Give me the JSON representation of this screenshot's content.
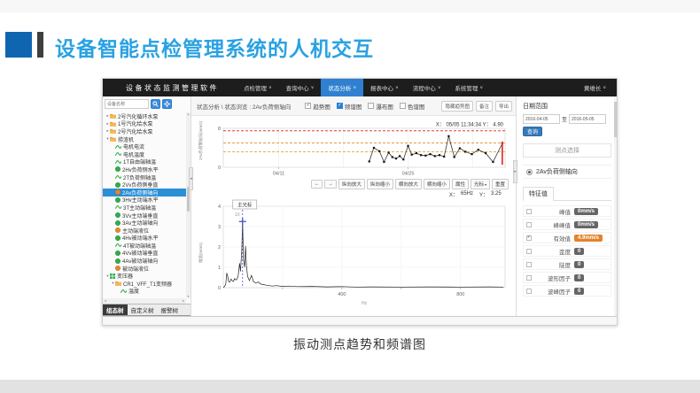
{
  "slide": {
    "title": "设备智能点检管理系统的人机交互",
    "caption": "振动测点趋势和频谱图"
  },
  "app": {
    "topbar": {
      "title": "设备状态监测管理软件",
      "menus": [
        {
          "label": "点检管理",
          "active": false
        },
        {
          "label": "查询中心",
          "active": false
        },
        {
          "label": "状态分析",
          "active": true
        },
        {
          "label": "报表中心",
          "active": false
        },
        {
          "label": "流程中心",
          "active": false
        },
        {
          "label": "系统管理",
          "active": false
        }
      ],
      "user": "黄维长"
    },
    "tree_panel": {
      "search_placeholder": "设备名称",
      "items": [
        {
          "label": "2号汽化循环水泵",
          "depth": 0,
          "icon": "folder",
          "arrow": "closed",
          "selected": false
        },
        {
          "label": "1号汽化给水泵",
          "depth": 0,
          "icon": "folder",
          "arrow": "closed",
          "selected": false
        },
        {
          "label": "2号汽化给水泵",
          "depth": 0,
          "icon": "folder",
          "arrow": "closed",
          "selected": false
        },
        {
          "label": "捞渣机",
          "depth": 0,
          "icon": "folder",
          "arrow": "open",
          "selected": false
        },
        {
          "label": "电机电流",
          "depth": 1,
          "icon": "wave",
          "arrow": null,
          "selected": false
        },
        {
          "label": "电机温度",
          "depth": 1,
          "icon": "wave",
          "arrow": null,
          "selected": false
        },
        {
          "label": "1T自由端轴温",
          "depth": 1,
          "icon": "wave",
          "arrow": null,
          "selected": false
        },
        {
          "label": "2Hv负荷侧水平",
          "depth": 1,
          "icon": "dot-green",
          "arrow": null,
          "selected": false
        },
        {
          "label": "2T负荷侧轴温",
          "depth": 1,
          "icon": "wave",
          "arrow": null,
          "selected": false
        },
        {
          "label": "2Vv负荷侧垂直",
          "depth": 1,
          "icon": "dot-green",
          "arrow": null,
          "selected": false
        },
        {
          "label": "2Av负荷侧轴向",
          "depth": 1,
          "icon": "dot-orange",
          "arrow": null,
          "selected": true
        },
        {
          "label": "3Hv主动端水平",
          "depth": 1,
          "icon": "dot-green",
          "arrow": null,
          "selected": false
        },
        {
          "label": "3T主动端轴温",
          "depth": 1,
          "icon": "wave",
          "arrow": null,
          "selected": false
        },
        {
          "label": "3Vv主动端垂直",
          "depth": 1,
          "icon": "dot-green",
          "arrow": null,
          "selected": false
        },
        {
          "label": "3Av主动端轴向",
          "depth": 1,
          "icon": "dot-green",
          "arrow": null,
          "selected": false
        },
        {
          "label": "主动端液位",
          "depth": 1,
          "icon": "dot-orange",
          "arrow": null,
          "selected": false
        },
        {
          "label": "4Hv被动端水平",
          "depth": 1,
          "icon": "dot-green",
          "arrow": null,
          "selected": false
        },
        {
          "label": "4T被动端轴温",
          "depth": 1,
          "icon": "wave",
          "arrow": null,
          "selected": false
        },
        {
          "label": "4Vv被动端垂直",
          "depth": 1,
          "icon": "dot-green",
          "arrow": null,
          "selected": false
        },
        {
          "label": "4Av被动端轴向",
          "depth": 1,
          "icon": "dot-green",
          "arrow": null,
          "selected": false
        },
        {
          "label": "被动端液位",
          "depth": 1,
          "icon": "dot-orange",
          "arrow": null,
          "selected": false
        },
        {
          "label": "变压器",
          "depth": 0,
          "icon": "grid",
          "arrow": "open",
          "selected": false
        },
        {
          "label": "CR1_VFF_T1变频器",
          "depth": 1,
          "icon": "folder",
          "arrow": "open",
          "selected": false
        },
        {
          "label": "温度",
          "depth": 2,
          "icon": "wave",
          "arrow": null,
          "selected": false
        }
      ],
      "tabs": [
        {
          "label": "组态树",
          "active": true
        },
        {
          "label": "自定义树",
          "active": false
        },
        {
          "label": "报警树",
          "active": false
        }
      ]
    },
    "main": {
      "breadcrumb": "状态分析 \\ 状态浏览 : 2Av负荷侧轴向",
      "view_toggles": [
        {
          "label": "趋势图",
          "checked": true,
          "style": "plain"
        },
        {
          "label": "频谱图",
          "checked": true,
          "style": "blue"
        },
        {
          "label": "瀑布图",
          "checked": false,
          "style": "box"
        },
        {
          "label": "色谱图",
          "checked": false,
          "style": "box"
        }
      ],
      "header_buttons": [
        "隐藏趋势图",
        "备注",
        "导出"
      ],
      "toolbar": {
        "prev": "←",
        "next": "→",
        "buttons": [
          {
            "label": "纵向放大",
            "caret": false
          },
          {
            "label": "纵向缩小",
            "caret": false
          },
          {
            "label": "横向放大",
            "caret": false
          },
          {
            "label": "横向缩小",
            "caret": false
          },
          {
            "label": "属性",
            "caret": false
          },
          {
            "label": "光标",
            "caret": true
          },
          {
            "label": "重置",
            "caret": false
          }
        ]
      },
      "readout": {
        "x_label": "X：",
        "x_value": "65Hz",
        "y_label": "Y：",
        "y_value": "3.25"
      }
    },
    "right_panel": {
      "date_range": {
        "title": "日期范围",
        "from": "2016-04-05",
        "joiner": "至",
        "to": "2016-05-05",
        "query": "查询"
      },
      "point_section": {
        "title": "测点选择",
        "selected_point": "2Av负荷侧轴向"
      },
      "features": {
        "title": "特征值",
        "rows": [
          {
            "label": "峰值",
            "value": "0mm/s",
            "checked": false,
            "highlight": false
          },
          {
            "label": "峰峰值",
            "value": "0mm/s",
            "checked": false,
            "highlight": false
          },
          {
            "label": "有效值",
            "value": "4.9mm/s",
            "checked": true,
            "highlight": true
          },
          {
            "label": "歪度",
            "value": "0",
            "checked": false,
            "highlight": false
          },
          {
            "label": "陡度",
            "value": "0",
            "checked": false,
            "highlight": false
          },
          {
            "label": "波形因子",
            "value": "0",
            "checked": false,
            "highlight": false
          },
          {
            "label": "波峰因子",
            "value": "0",
            "checked": false,
            "highlight": false
          }
        ]
      }
    }
  },
  "chart_data": [
    {
      "type": "line",
      "name": "vibration-trend",
      "ylabel": "2Av负荷侧轴向(mm/s)",
      "ylim": [
        0,
        8
      ],
      "yticks": [
        0,
        8
      ],
      "xlim": [
        0,
        30.5
      ],
      "xticks": [
        {
          "x": 6,
          "label": "04/11"
        },
        {
          "x": 20,
          "label": "04/25"
        }
      ],
      "xgrid": [
        6,
        13,
        20,
        27
      ],
      "thresholds": [
        {
          "y": 7.5,
          "color": "#e23b3b"
        },
        {
          "y": 5.0,
          "color": "#e79a3a"
        },
        {
          "y": 3.2,
          "color": "#c9b42e"
        }
      ],
      "annotation": "X：  05/05 11:34:34      Y：  4.90",
      "cursor": {
        "x": 30.2,
        "y": 4.9,
        "color": "#e23b3b"
      },
      "x": [
        15.8,
        16.3,
        16.9,
        17.4,
        17.9,
        18.3,
        18.7,
        19.1,
        19.5,
        20.0,
        20.4,
        20.9,
        21.4,
        21.9,
        22.4,
        22.9,
        23.4,
        23.9,
        24.4,
        25.0,
        25.6,
        26.2,
        26.9,
        27.6,
        28.4,
        29.2,
        30.2
      ],
      "y": [
        1.2,
        4.0,
        3.3,
        1.1,
        3.0,
        2.1,
        1.8,
        2.3,
        1.6,
        4.4,
        2.6,
        2.9,
        2.5,
        2.4,
        2.7,
        2.3,
        2.5,
        2.2,
        6.4,
        2.1,
        3.9,
        3.2,
        2.7,
        3.6,
        2.9,
        1.1,
        4.9
      ]
    },
    {
      "type": "line",
      "name": "vibration-spectrum",
      "ylabel": "幅值(mm/s)",
      "xlabel": "Hz",
      "ylim": [
        0,
        4
      ],
      "yticks": [
        0,
        1,
        2,
        3,
        4
      ],
      "xlim": [
        0,
        950
      ],
      "xticks": [
        {
          "x": 400,
          "label": "400"
        },
        {
          "x": 800,
          "label": "800"
        }
      ],
      "minor_xticks": [
        200,
        600
      ],
      "legend": "主光标",
      "cursor": {
        "x": 65,
        "y": 3.25,
        "label": "1X",
        "color": "#4054c8"
      },
      "x": [
        2,
        8,
        12,
        15,
        18,
        22,
        26,
        30,
        34,
        38,
        42,
        46,
        50,
        55,
        58,
        62,
        65,
        68,
        72,
        75,
        78,
        82,
        88,
        95,
        102,
        110,
        118,
        126,
        135,
        145,
        155,
        165,
        180,
        200,
        220,
        250,
        300,
        350,
        400,
        450,
        500,
        600,
        700,
        800,
        900,
        945
      ],
      "y": [
        0.02,
        0.15,
        0.72,
        0.55,
        0.3,
        0.28,
        0.42,
        0.35,
        0.3,
        0.45,
        0.38,
        0.42,
        0.55,
        1.2,
        0.8,
        1.8,
        3.25,
        1.4,
        1.0,
        2.05,
        1.1,
        0.55,
        0.35,
        0.6,
        0.3,
        0.22,
        0.28,
        0.18,
        0.15,
        0.12,
        0.1,
        0.08,
        0.1,
        0.06,
        0.08,
        0.05,
        0.06,
        0.04,
        0.05,
        0.03,
        0.04,
        0.03,
        0.04,
        0.03,
        0.04,
        0.03
      ]
    }
  ]
}
